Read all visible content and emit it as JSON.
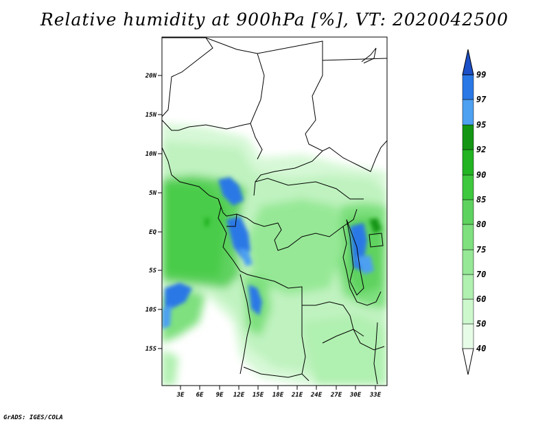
{
  "title": "Relative humidity at 900hPa [%], VT: 2020042500",
  "credit": "GrADS: IGES/COLA",
  "map": {
    "lat_ticks": [
      "20N",
      "15N",
      "10N",
      "5N",
      "EQ",
      "5S",
      "10S",
      "15S"
    ],
    "lon_ticks": [
      "3E",
      "6E",
      "9E",
      "12E",
      "15E",
      "18E",
      "21E",
      "24E",
      "27E",
      "30E",
      "33E"
    ]
  },
  "colorbar": {
    "levels": [
      "40",
      "50",
      "60",
      "70",
      "75",
      "80",
      "85",
      "90",
      "92",
      "95",
      "97",
      "99"
    ],
    "colors": [
      "#ffffff",
      "#e6fce6",
      "#cdf8cd",
      "#b0f0b0",
      "#96e896",
      "#7ee07e",
      "#5ed25e",
      "#3ec83e",
      "#22b422",
      "#149614",
      "#4ea0f0",
      "#2a78e6",
      "#1c50c8"
    ]
  }
}
